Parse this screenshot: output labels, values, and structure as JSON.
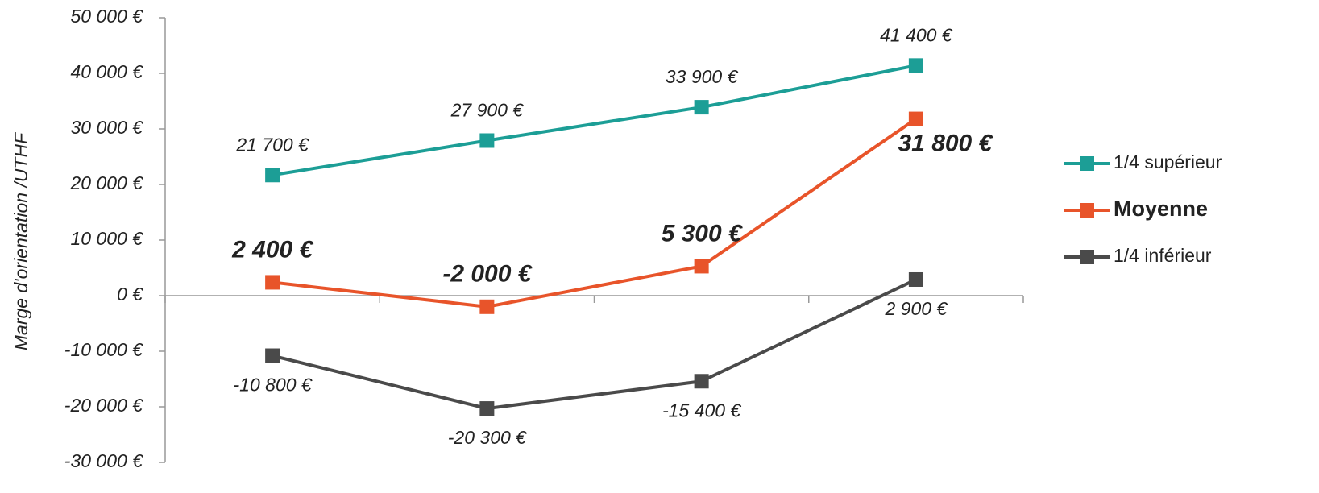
{
  "chart_data": {
    "type": "line",
    "y_label": "Marge d'orientation /UTHF",
    "categories": [
      null,
      null,
      null,
      null
    ],
    "series": [
      {
        "name": "1/4 supérieur",
        "color": "#1c9e96",
        "values": [
          21700,
          27900,
          33900,
          41400
        ],
        "value_labels": [
          "21 700 €",
          "27 900 €",
          "33 900 €",
          "41 400 €"
        ]
      },
      {
        "name": "Moyenne",
        "color": "#e8542a",
        "values": [
          2400,
          -2000,
          5300,
          31800
        ],
        "value_labels": [
          "2 400 €",
          "-2 000 €",
          "5 300 €",
          "31 800 €"
        ]
      },
      {
        "name": "1/4 inférieur",
        "color": "#4a4a4a",
        "values": [
          -10800,
          -20300,
          -15400,
          2900
        ],
        "value_labels": [
          "-10 800 €",
          "-20 300 €",
          "-15 400 €",
          "2 900 €"
        ]
      }
    ],
    "ylim": [
      -30000,
      50000
    ],
    "yticks": [
      {
        "value": -30000,
        "label": "-30 000 €"
      },
      {
        "value": -20000,
        "label": "-20 000 €"
      },
      {
        "value": -10000,
        "label": "-10 000 €"
      },
      {
        "value": 0,
        "label": "0 €"
      },
      {
        "value": 10000,
        "label": "10 000 €"
      },
      {
        "value": 20000,
        "label": "20 000 €"
      },
      {
        "value": 30000,
        "label": "30 000 €"
      },
      {
        "value": 40000,
        "label": "40 000 €"
      },
      {
        "value": 50000,
        "label": "50 000 €"
      }
    ],
    "legend": "right"
  }
}
